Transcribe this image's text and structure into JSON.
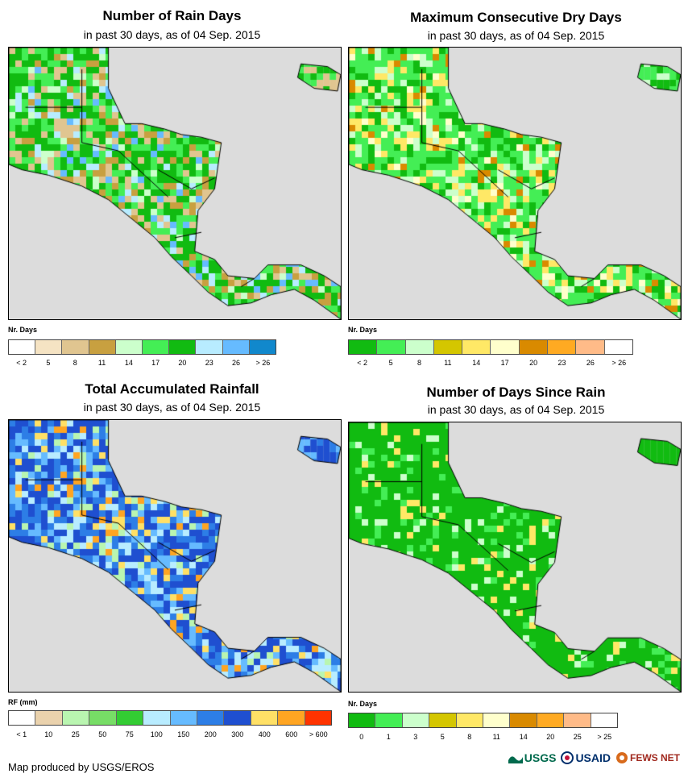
{
  "panels": [
    {
      "id": "rain-days",
      "title": "Number of Rain Days",
      "subtitle": "in past 30 days, as of 04 Sep. 2015",
      "legend_title": "Nr. Days",
      "legend_labels": [
        "< 2",
        "5",
        "8",
        "11",
        "14",
        "17",
        "20",
        "23",
        "26",
        "> 26"
      ],
      "legend_colors": [
        "#ffffff",
        "#f5e3c3",
        "#e0c590",
        "#c8a040",
        "#ccffcc",
        "#44ee55",
        "#11bb11",
        "#b8ecff",
        "#66bbff",
        "#1188cc"
      ],
      "palette": [
        "#11bb11",
        "#44ee55",
        "#e0c590",
        "#c8a040",
        "#b8ecff",
        "#66bbff",
        "#ccffcc"
      ]
    },
    {
      "id": "max-dry-days",
      "title": "Maximum Consecutive Dry Days",
      "subtitle": "in past 30 days, as of 04 Sep. 2015",
      "legend_title": "Nr. Days",
      "legend_labels": [
        "< 2",
        "5",
        "8",
        "11",
        "14",
        "17",
        "20",
        "23",
        "26",
        "> 26"
      ],
      "legend_colors": [
        "#11bb11",
        "#44ee55",
        "#ccffcc",
        "#d4c600",
        "#ffe866",
        "#ffffcc",
        "#d98a00",
        "#ffaa22",
        "#ffbb88",
        "#ffffff"
      ],
      "palette": [
        "#44ee55",
        "#11bb11",
        "#ccffcc",
        "#ffe866",
        "#d98a00",
        "#ffffcc"
      ]
    },
    {
      "id": "total-rainfall",
      "title": "Total Accumulated Rainfall",
      "subtitle": "in past 30 days, as of 04 Sep. 2015",
      "legend_title": "RF (mm)",
      "legend_labels": [
        "< 1",
        "10",
        "25",
        "50",
        "75",
        "100",
        "150",
        "200",
        "300",
        "400",
        "600",
        "> 600"
      ],
      "legend_colors": [
        "#ffffff",
        "#ead2ad",
        "#b9f5b0",
        "#77dd66",
        "#33cc33",
        "#b8ecff",
        "#66bbff",
        "#2d7ee6",
        "#1f4fd0",
        "#ffe066",
        "#ffa522",
        "#ff3300"
      ],
      "palette": [
        "#1f4fd0",
        "#2d7ee6",
        "#66bbff",
        "#b8ecff",
        "#b9f5b0",
        "#ffe066",
        "#ffa522"
      ]
    },
    {
      "id": "days-since-rain",
      "title": "Number of Days Since Rain",
      "subtitle": "in past 30 days, as of 04 Sep. 2015",
      "legend_title": "Nr. Days",
      "legend_labels": [
        "0",
        "1",
        "3",
        "5",
        "8",
        "11",
        "14",
        "20",
        "25",
        "> 25"
      ],
      "legend_colors": [
        "#11bb11",
        "#44ee55",
        "#ccffcc",
        "#d4c600",
        "#ffe866",
        "#ffffcc",
        "#d98a00",
        "#ffaa22",
        "#ffbb88",
        "#ffffff"
      ],
      "palette": [
        "#11bb11",
        "#11bb11",
        "#11bb11",
        "#44ee55",
        "#ccffcc",
        "#ffe866"
      ]
    }
  ],
  "footer": "Map produced by USGS/EROS",
  "logos": [
    "USGS",
    "USAID",
    "FEWS NET"
  ]
}
